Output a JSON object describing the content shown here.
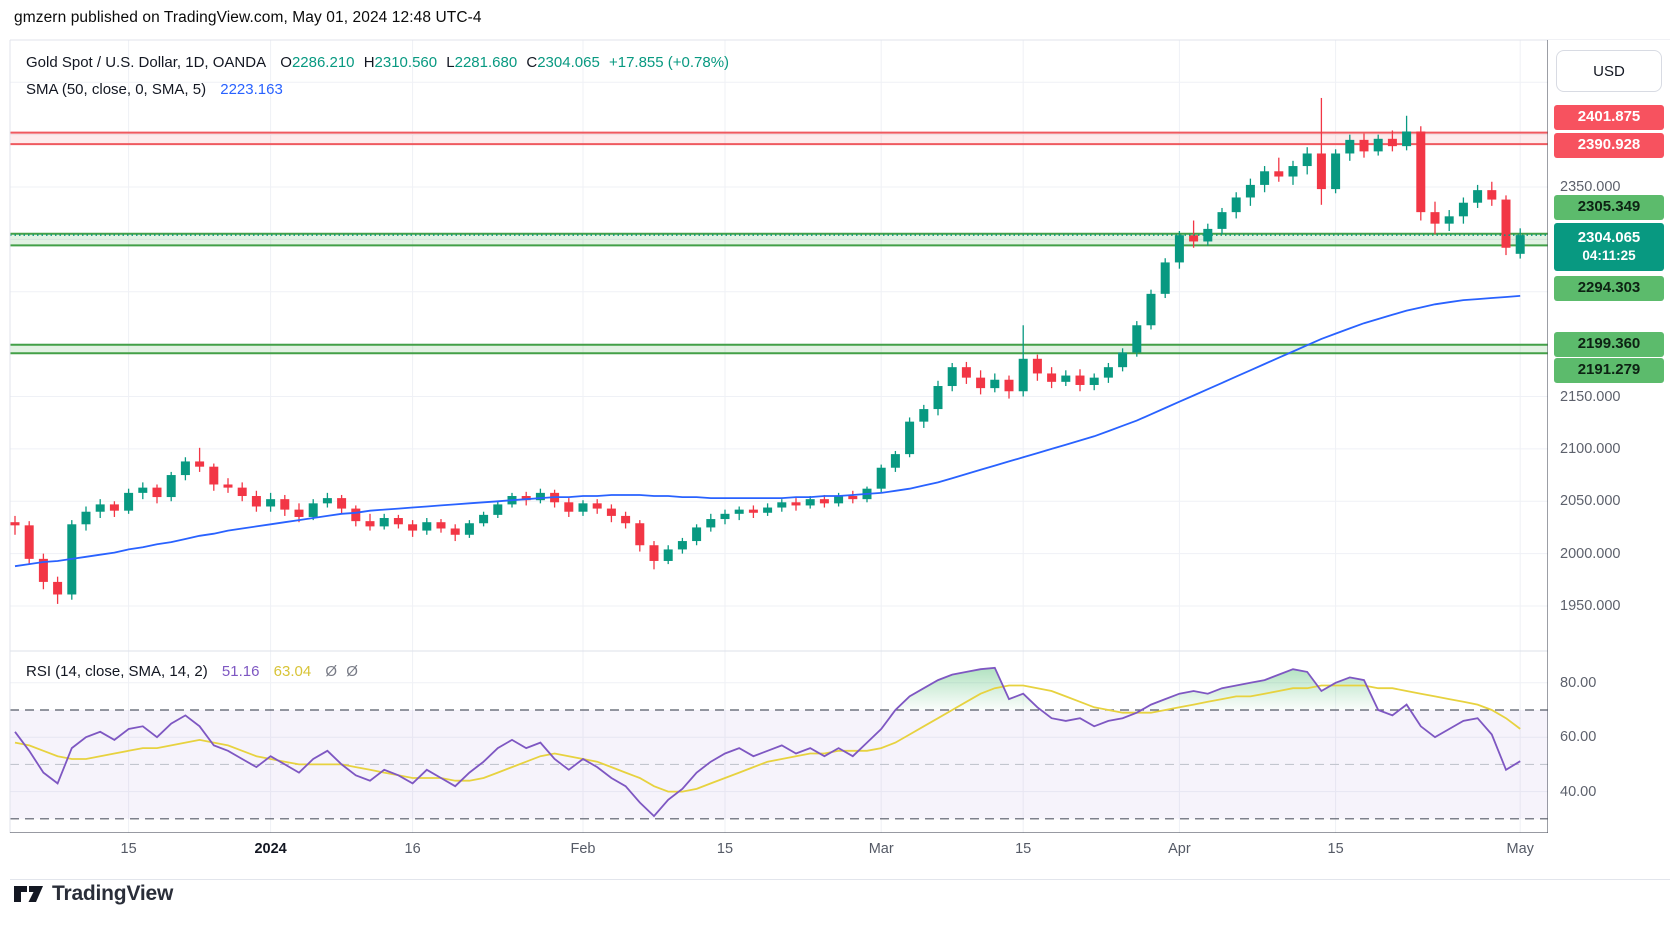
{
  "header": {
    "published_line": "gmzern published on TradingView.com, May 01, 2024 12:48 UTC-4"
  },
  "legend": {
    "symbol_title": "Gold Spot / U.S. Dollar, 1D, OANDA",
    "ohlc": {
      "o_label": "O",
      "o": "2286.210",
      "h_label": "H",
      "h": "2310.560",
      "l_label": "L",
      "l": "2281.680",
      "c_label": "C",
      "c": "2304.065",
      "change": "+17.855 (+0.78%)"
    },
    "sma_label": "SMA (50, close, 0, SMA, 5)",
    "sma_value": "2223.163"
  },
  "rsi_legend": {
    "label": "RSI (14, close, SMA, 14, 2)",
    "value": "51.16",
    "sma_value": "63.04",
    "hidden_1": "Ø",
    "hidden_2": "Ø"
  },
  "price_axis": {
    "currency_button": "USD",
    "ticks": [
      {
        "label": "2350.000",
        "value": 2350
      },
      {
        "label": "2150.000",
        "value": 2150
      },
      {
        "label": "2100.000",
        "value": 2100
      },
      {
        "label": "2050.000",
        "value": 2050
      },
      {
        "label": "2000.000",
        "value": 2000
      },
      {
        "label": "1950.000",
        "value": 1950
      }
    ],
    "badges": [
      {
        "label": "2401.875",
        "value": 2401.875,
        "type": "resistance"
      },
      {
        "label": "2390.928",
        "value": 2390.928,
        "type": "resistance"
      },
      {
        "label": "2305.349",
        "value": 2305.349,
        "type": "support"
      },
      {
        "label": "2304.065",
        "value": 2304.065,
        "type": "current",
        "countdown": "04:11:25"
      },
      {
        "label": "2294.303",
        "value": 2294.303,
        "type": "support"
      },
      {
        "label": "2199.360",
        "value": 2199.36,
        "type": "support"
      },
      {
        "label": "2191.279",
        "value": 2191.279,
        "type": "support"
      }
    ]
  },
  "rsi_axis": {
    "ticks": [
      {
        "label": "80.00",
        "value": 80
      },
      {
        "label": "60.00",
        "value": 60
      },
      {
        "label": "40.00",
        "value": 40
      }
    ]
  },
  "time_axis": {
    "labels": [
      {
        "index": 8,
        "label": "15"
      },
      {
        "index": 18,
        "label": "2024",
        "year": true
      },
      {
        "index": 28,
        "label": "16"
      },
      {
        "index": 40,
        "label": "Feb"
      },
      {
        "index": 50,
        "label": "15"
      },
      {
        "index": 61,
        "label": "Mar"
      },
      {
        "index": 71,
        "label": "15"
      },
      {
        "index": 82,
        "label": "Apr"
      },
      {
        "index": 93,
        "label": "15"
      },
      {
        "index": 106,
        "label": "May"
      }
    ]
  },
  "footer": {
    "brand": "TradingView"
  },
  "colors": {
    "up": "#089981",
    "down": "#F23645",
    "sma_line": "#2962FF",
    "rsi_line": "#7E57C2",
    "rsi_sma_line": "#E7D23F",
    "grid": "#eff1f6",
    "axis_border": "#5a5e6a",
    "frame_border": "#e0e3eb",
    "res_line": "#ef595f",
    "res_fill": "rgba(242,54,69,0.10)",
    "sup_line": "#43A047",
    "sup_fill": "rgba(76,175,80,0.16)",
    "current_dotted": "#089981",
    "band_fill": "rgba(126,87,194,0.07)",
    "over70_fill": "#22ab4d",
    "dash_strong": "#555a66",
    "dash_weak": "#c3c6cf"
  },
  "chart_data": [
    {
      "type": "candlestick",
      "title": "Gold Spot / U.S. Dollar, 1D, OANDA",
      "ylabel": "USD",
      "ylim": [
        1907,
        2490
      ],
      "grid": true,
      "levels": {
        "resistance_zone": [
          2401.875,
          2390.928
        ],
        "support_zone_1": [
          2305.349,
          2294.303
        ],
        "support_zone_2": [
          2199.36,
          2191.279
        ],
        "current_price": 2304.065
      },
      "candles_ohlc": [
        [
          2030,
          2036,
          2018,
          2027
        ],
        [
          2027,
          2031,
          1990,
          1995
        ],
        [
          1995,
          2000,
          1966,
          1973
        ],
        [
          1973,
          1978,
          1952,
          1961
        ],
        [
          1961,
          2032,
          1956,
          2028
        ],
        [
          2028,
          2045,
          2022,
          2040
        ],
        [
          2040,
          2052,
          2034,
          2047
        ],
        [
          2047,
          2050,
          2035,
          2041
        ],
        [
          2041,
          2062,
          2038,
          2058
        ],
        [
          2058,
          2068,
          2052,
          2063
        ],
        [
          2063,
          2066,
          2048,
          2054
        ],
        [
          2054,
          2078,
          2050,
          2075
        ],
        [
          2075,
          2092,
          2070,
          2088
        ],
        [
          2088,
          2101,
          2078,
          2083
        ],
        [
          2083,
          2086,
          2060,
          2066
        ],
        [
          2066,
          2072,
          2058,
          2063
        ],
        [
          2063,
          2068,
          2050,
          2055
        ],
        [
          2055,
          2060,
          2040,
          2045
        ],
        [
          2045,
          2058,
          2040,
          2052
        ],
        [
          2052,
          2056,
          2036,
          2042
        ],
        [
          2042,
          2048,
          2030,
          2035
        ],
        [
          2035,
          2052,
          2032,
          2048
        ],
        [
          2048,
          2058,
          2044,
          2053
        ],
        [
          2053,
          2056,
          2038,
          2043
        ],
        [
          2043,
          2046,
          2026,
          2031
        ],
        [
          2031,
          2038,
          2022,
          2026
        ],
        [
          2026,
          2038,
          2023,
          2034
        ],
        [
          2034,
          2037,
          2024,
          2028
        ],
        [
          2028,
          2032,
          2016,
          2022
        ],
        [
          2022,
          2034,
          2018,
          2030
        ],
        [
          2030,
          2033,
          2020,
          2024
        ],
        [
          2024,
          2028,
          2012,
          2018
        ],
        [
          2018,
          2032,
          2015,
          2029
        ],
        [
          2029,
          2040,
          2026,
          2037
        ],
        [
          2037,
          2050,
          2034,
          2047
        ],
        [
          2047,
          2058,
          2044,
          2055
        ],
        [
          2055,
          2059,
          2046,
          2051
        ],
        [
          2051,
          2062,
          2048,
          2058
        ],
        [
          2058,
          2061,
          2044,
          2049
        ],
        [
          2049,
          2053,
          2035,
          2040
        ],
        [
          2040,
          2051,
          2036,
          2048
        ],
        [
          2048,
          2052,
          2038,
          2043
        ],
        [
          2043,
          2047,
          2030,
          2036
        ],
        [
          2036,
          2040,
          2024,
          2029
        ],
        [
          2029,
          2032,
          2002,
          2008
        ],
        [
          2008,
          2012,
          1985,
          1993
        ],
        [
          1993,
          2008,
          1990,
          2004
        ],
        [
          2004,
          2015,
          2000,
          2012
        ],
        [
          2012,
          2028,
          2008,
          2025
        ],
        [
          2025,
          2038,
          2021,
          2033
        ],
        [
          2033,
          2042,
          2028,
          2038
        ],
        [
          2038,
          2045,
          2032,
          2042
        ],
        [
          2042,
          2046,
          2034,
          2039
        ],
        [
          2039,
          2048,
          2036,
          2044
        ],
        [
          2044,
          2052,
          2040,
          2049
        ],
        [
          2049,
          2053,
          2041,
          2046
        ],
        [
          2046,
          2055,
          2043,
          2052
        ],
        [
          2052,
          2056,
          2044,
          2048
        ],
        [
          2048,
          2058,
          2045,
          2055
        ],
        [
          2055,
          2060,
          2048,
          2052
        ],
        [
          2052,
          2064,
          2049,
          2062
        ],
        [
          2062,
          2085,
          2058,
          2082
        ],
        [
          2082,
          2098,
          2078,
          2095
        ],
        [
          2095,
          2130,
          2092,
          2126
        ],
        [
          2126,
          2142,
          2120,
          2138
        ],
        [
          2138,
          2165,
          2132,
          2160
        ],
        [
          2160,
          2182,
          2155,
          2178
        ],
        [
          2178,
          2183,
          2162,
          2168
        ],
        [
          2168,
          2175,
          2152,
          2158
        ],
        [
          2158,
          2172,
          2154,
          2166
        ],
        [
          2166,
          2170,
          2148,
          2155
        ],
        [
          2155,
          2218,
          2150,
          2186
        ],
        [
          2186,
          2190,
          2165,
          2172
        ],
        [
          2172,
          2178,
          2158,
          2164
        ],
        [
          2164,
          2175,
          2160,
          2170
        ],
        [
          2170,
          2176,
          2155,
          2161
        ],
        [
          2161,
          2172,
          2156,
          2168
        ],
        [
          2168,
          2182,
          2163,
          2178
        ],
        [
          2178,
          2196,
          2174,
          2192
        ],
        [
          2192,
          2222,
          2188,
          2218
        ],
        [
          2218,
          2252,
          2214,
          2248
        ],
        [
          2248,
          2282,
          2244,
          2278
        ],
        [
          2278,
          2308,
          2272,
          2304
        ],
        [
          2304,
          2318,
          2292,
          2298
        ],
        [
          2298,
          2315,
          2294,
          2310
        ],
        [
          2310,
          2330,
          2305,
          2326
        ],
        [
          2326,
          2345,
          2320,
          2340
        ],
        [
          2340,
          2358,
          2332,
          2352
        ],
        [
          2352,
          2370,
          2345,
          2365
        ],
        [
          2365,
          2378,
          2355,
          2360
        ],
        [
          2360,
          2375,
          2352,
          2370
        ],
        [
          2370,
          2388,
          2362,
          2382
        ],
        [
          2382,
          2435,
          2333,
          2348
        ],
        [
          2348,
          2386,
          2344,
          2382
        ],
        [
          2382,
          2400,
          2375,
          2395
        ],
        [
          2395,
          2401,
          2378,
          2384
        ],
        [
          2384,
          2400,
          2380,
          2396
        ],
        [
          2396,
          2404,
          2384,
          2389
        ],
        [
          2389,
          2418,
          2385,
          2403
        ],
        [
          2403,
          2408,
          2318,
          2326
        ],
        [
          2326,
          2336,
          2305,
          2315
        ],
        [
          2315,
          2328,
          2308,
          2322
        ],
        [
          2322,
          2340,
          2315,
          2335
        ],
        [
          2335,
          2352,
          2330,
          2347
        ],
        [
          2347,
          2355,
          2332,
          2338
        ],
        [
          2338,
          2342,
          2285,
          2292
        ],
        [
          2286.21,
          2310.56,
          2281.68,
          2304.065
        ]
      ],
      "sma50": [
        1988,
        1990,
        1992,
        1993,
        1995,
        1997,
        1999,
        2001,
        2004,
        2006,
        2009,
        2011,
        2014,
        2017,
        2019,
        2022,
        2024,
        2026,
        2028,
        2030,
        2032,
        2034,
        2036,
        2038,
        2039,
        2041,
        2042,
        2043,
        2044,
        2045,
        2046,
        2047,
        2048,
        2049,
        2050,
        2051,
        2052,
        2053,
        2054,
        2054,
        2055,
        2055,
        2056,
        2056,
        2056,
        2055,
        2055,
        2054,
        2054,
        2053,
        2053,
        2053,
        2053,
        2053,
        2053,
        2054,
        2054,
        2055,
        2055,
        2056,
        2057,
        2058,
        2060,
        2062,
        2065,
        2068,
        2072,
        2076,
        2080,
        2084,
        2088,
        2092,
        2096,
        2100,
        2104,
        2108,
        2112,
        2117,
        2122,
        2127,
        2133,
        2139,
        2145,
        2151,
        2157,
        2163,
        2169,
        2175,
        2181,
        2187,
        2193,
        2199,
        2205,
        2210,
        2215,
        2220,
        2224,
        2228,
        2232,
        2235,
        2238,
        2240,
        2242,
        2243,
        2244,
        2245,
        2246
      ]
    },
    {
      "type": "line",
      "title": "RSI (14, close, SMA, 14, 2)",
      "ylim": [
        25,
        92
      ],
      "overbought_level": 70,
      "middle_level": 50,
      "oversold_level": 30,
      "rsi": [
        62,
        55,
        47,
        43,
        56,
        60,
        62,
        59,
        63,
        64,
        60,
        65,
        68,
        64,
        57,
        55,
        52,
        49,
        53,
        50,
        47,
        52,
        55,
        50,
        46,
        44,
        48,
        46,
        43,
        48,
        45,
        42,
        47,
        51,
        56,
        59,
        56,
        58,
        52,
        48,
        52,
        49,
        45,
        42,
        36,
        31,
        37,
        41,
        47,
        51,
        54,
        56,
        53,
        55,
        57,
        54,
        56,
        53,
        56,
        53,
        58,
        63,
        70,
        75,
        78,
        81,
        83,
        84,
        85,
        85.5,
        74,
        76,
        71,
        67,
        66,
        67,
        64,
        66,
        67,
        69,
        72,
        74,
        76,
        77,
        76,
        78,
        79,
        80,
        81,
        83,
        85,
        84,
        77,
        80,
        82,
        81,
        70,
        68,
        72,
        64,
        60,
        63,
        66,
        67,
        61,
        48,
        51.16
      ],
      "rsi_sma": [
        58,
        57,
        55,
        53,
        52,
        52,
        53,
        54,
        55,
        56,
        56,
        57,
        58,
        59,
        58,
        57,
        55,
        53,
        52,
        51,
        50,
        50,
        50,
        50,
        49,
        48,
        47,
        46,
        45,
        45,
        45,
        44,
        44,
        45,
        47,
        49,
        51,
        53,
        54,
        53,
        52,
        51,
        49,
        47,
        45,
        42,
        40,
        40,
        41,
        43,
        45,
        47,
        49,
        51,
        52,
        53,
        54,
        54,
        55,
        55,
        55,
        56,
        58,
        61,
        64,
        67,
        70,
        73,
        76,
        78,
        79,
        79,
        78,
        77,
        75,
        73,
        71,
        70,
        69,
        69,
        69,
        70,
        71,
        72,
        73,
        74,
        75,
        75,
        76,
        77,
        78,
        78,
        79,
        79,
        79,
        79,
        78,
        78,
        77,
        76,
        75,
        74,
        73,
        72,
        70,
        67,
        63.04
      ]
    }
  ]
}
